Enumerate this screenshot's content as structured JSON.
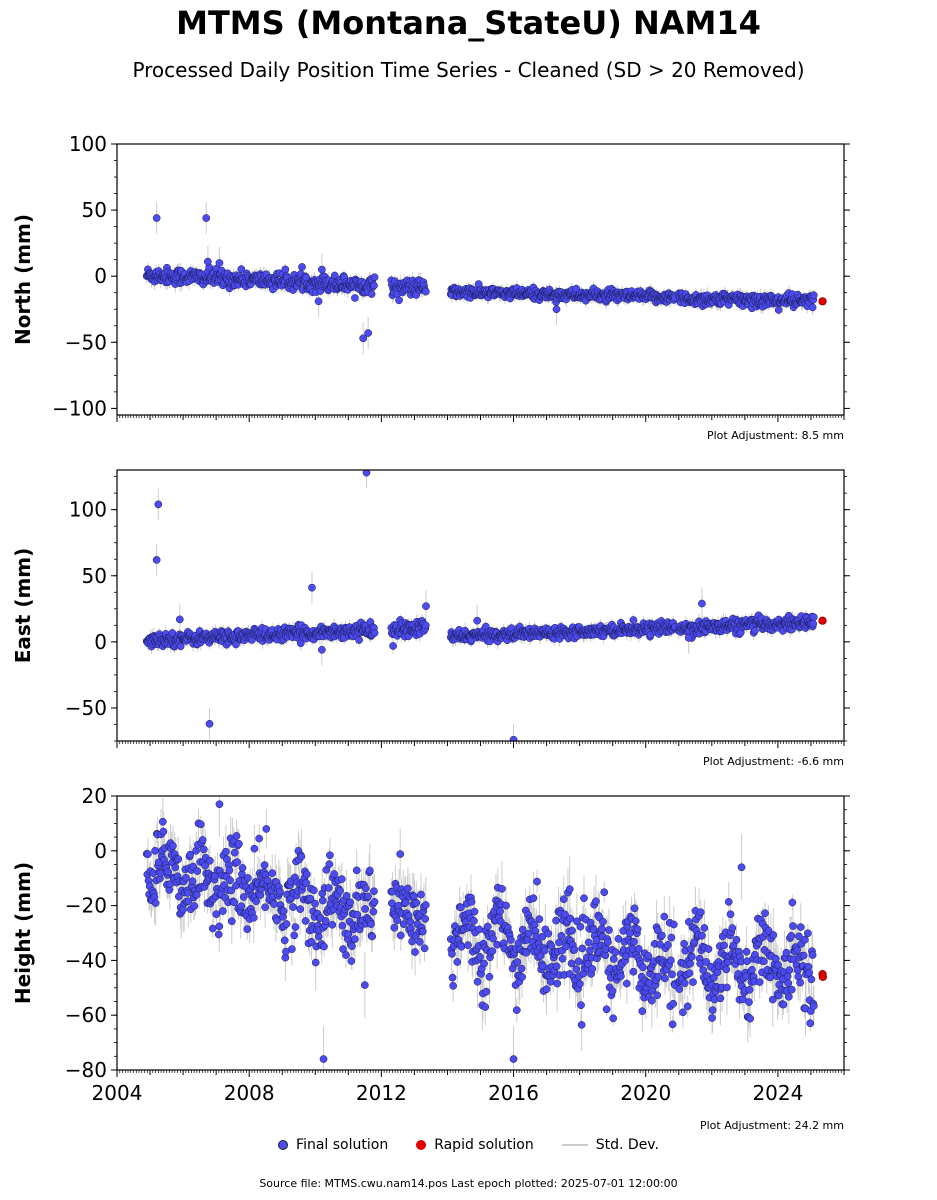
{
  "title": "MTMS (Montana_StateU) NAM14",
  "subtitle": "Processed Daily Position Time Series - Cleaned (SD > 20 Removed)",
  "footer": "Source file: MTMS.cwu.nam14.pos  Last epoch plotted: 2025-07-01 12:00:00",
  "legend": {
    "final": "Final solution",
    "rapid": "Rapid solution",
    "sd": "Std. Dev."
  },
  "colors": {
    "final": "#4b4bf0",
    "rapid": "#e00000",
    "sd": "#c8c8c8"
  },
  "chart_data": [
    {
      "type": "scatter",
      "component": "north",
      "ylabel": "North (mm)",
      "ylim": [
        -105,
        100
      ],
      "yticks": [
        100,
        50,
        0,
        -50,
        -100
      ],
      "xlim": [
        2004.0,
        2026.0
      ],
      "adjustment": "Plot Adjustment: 8.5 mm",
      "segments": [
        {
          "start": 2004.9,
          "end": 2011.8,
          "y0": 1,
          "y1": -7,
          "noise": 3
        },
        {
          "start": 2012.3,
          "end": 2013.35,
          "y0": -8,
          "y1": -9,
          "noise": 3
        },
        {
          "start": 2014.1,
          "end": 2020.9,
          "y0": -12,
          "y1": -16,
          "noise": 2
        },
        {
          "start": 2021.0,
          "end": 2025.1,
          "y0": -17,
          "y1": -19,
          "noise": 2.5
        }
      ],
      "outliers": [
        [
          2005.2,
          44
        ],
        [
          2006.7,
          44
        ],
        [
          2006.75,
          11
        ],
        [
          2007.1,
          10
        ],
        [
          2011.45,
          -47
        ],
        [
          2011.6,
          -43
        ],
        [
          2010.2,
          5
        ],
        [
          2010.1,
          -19
        ],
        [
          2017.3,
          -25
        ]
      ],
      "rapid": [
        [
          2025.35,
          -19
        ]
      ]
    },
    {
      "type": "scatter",
      "component": "east",
      "ylabel": "East (mm)",
      "ylim": [
        -75,
        130
      ],
      "yticks": [
        100,
        50,
        0,
        -50
      ],
      "xlim": [
        2004.0,
        2026.0
      ],
      "adjustment": "Plot Adjustment: -6.6 mm",
      "segments": [
        {
          "start": 2004.9,
          "end": 2011.8,
          "y0": 1,
          "y1": 9,
          "noise": 2.5
        },
        {
          "start": 2012.3,
          "end": 2013.35,
          "y0": 8,
          "y1": 11,
          "noise": 3
        },
        {
          "start": 2014.1,
          "end": 2020.9,
          "y0": 4,
          "y1": 11,
          "noise": 2
        },
        {
          "start": 2021.0,
          "end": 2025.1,
          "y0": 10,
          "y1": 15,
          "noise": 2.5
        }
      ],
      "outliers": [
        [
          2005.2,
          62
        ],
        [
          2005.25,
          104
        ],
        [
          2006.8,
          -62
        ],
        [
          2005.9,
          17
        ],
        [
          2009.9,
          41
        ],
        [
          2010.2,
          -6
        ],
        [
          2011.55,
          128
        ],
        [
          2013.35,
          27
        ],
        [
          2014.9,
          16
        ],
        [
          2016.0,
          -74
        ],
        [
          2021.7,
          29
        ],
        [
          2021.3,
          3
        ]
      ],
      "rapid": [
        [
          2025.35,
          16
        ]
      ]
    },
    {
      "type": "scatter",
      "component": "height",
      "ylabel": "Height (mm)",
      "ylim": [
        -80,
        20
      ],
      "yticks": [
        20,
        0,
        -20,
        -40,
        -60,
        -80
      ],
      "xlim": [
        2004.0,
        2026.0
      ],
      "xticks": [
        2004,
        2008,
        2012,
        2016,
        2020,
        2024
      ],
      "adjustment": "Plot Adjustment: 24.2 mm",
      "segments": [
        {
          "start": 2004.9,
          "end": 2011.8,
          "y0": -5,
          "y1": -25,
          "noise": 7,
          "seasonal": 6
        },
        {
          "start": 2012.3,
          "end": 2013.35,
          "y0": -22,
          "y1": -25,
          "noise": 7,
          "seasonal": 4
        },
        {
          "start": 2014.1,
          "end": 2020.9,
          "y0": -30,
          "y1": -42,
          "noise": 7,
          "seasonal": 8
        },
        {
          "start": 2021.0,
          "end": 2025.1,
          "y0": -40,
          "y1": -42,
          "noise": 7,
          "seasonal": 8
        }
      ],
      "outliers": [
        [
          2007.1,
          17
        ],
        [
          2010.25,
          -76
        ],
        [
          2016.0,
          -76
        ],
        [
          2022.9,
          -6
        ],
        [
          2017.7,
          -14
        ],
        [
          2011.5,
          -49
        ]
      ],
      "rapid": [
        [
          2025.35,
          -45
        ],
        [
          2025.36,
          -46
        ]
      ]
    }
  ]
}
